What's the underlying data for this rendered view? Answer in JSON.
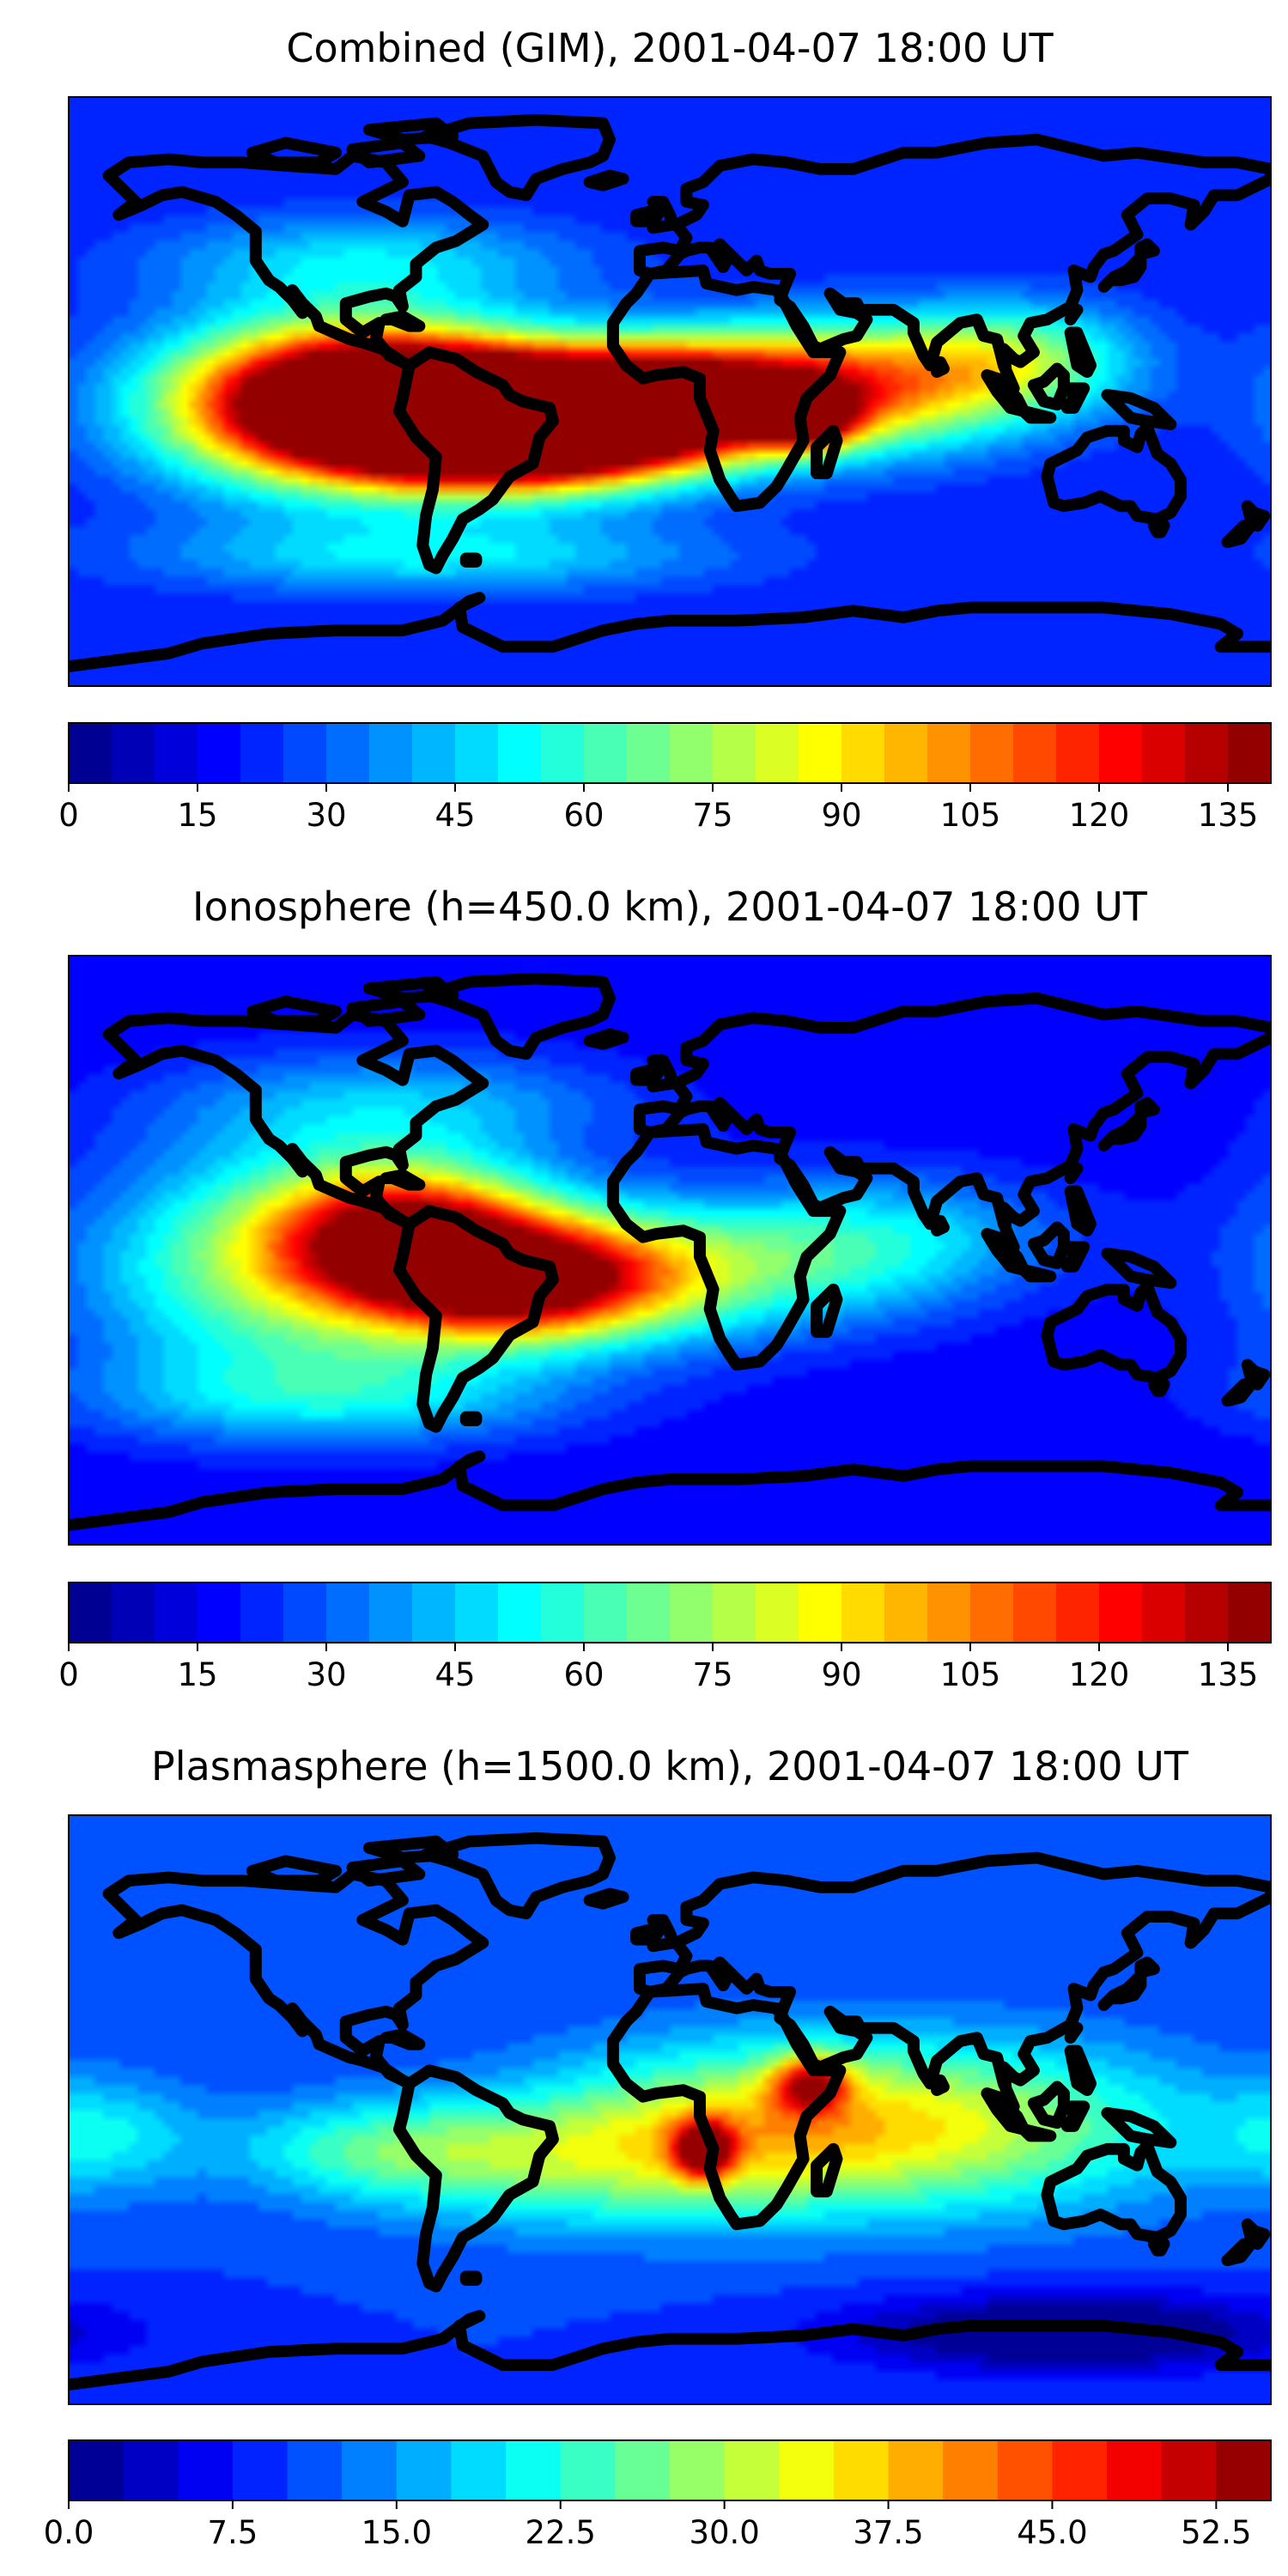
{
  "chart_data": [
    {
      "type": "heatmap",
      "title": "Combined (GIM), 2001-04-07 18:00 UT",
      "map_projection": "plate carree (global, lon -180..180, lat -90..90)",
      "colormap": "jet",
      "colorbar": {
        "min": 0,
        "max": 140,
        "levels": 28,
        "tick_values": [
          0,
          15,
          30,
          45,
          60,
          75,
          90,
          105,
          120,
          135
        ],
        "tick_labels": [
          "0",
          "15",
          "30",
          "45",
          "60",
          "75",
          "90",
          "105",
          "120",
          "135"
        ]
      },
      "background_value": 20,
      "features": [
        {
          "lon": -85,
          "lat": 0,
          "value": 120,
          "slon": 35,
          "slat": 14
        },
        {
          "lon": -60,
          "lat": -10,
          "value": 125,
          "slon": 35,
          "slat": 12
        },
        {
          "lon": -40,
          "lat": -12,
          "value": 112,
          "slon": 35,
          "slat": 12
        },
        {
          "lon": -15,
          "lat": -5,
          "value": 100,
          "slon": 30,
          "slat": 12
        },
        {
          "lon": -105,
          "lat": -5,
          "value": 92,
          "slon": 38,
          "slat": 18
        },
        {
          "lon": 40,
          "lat": -8,
          "value": 110,
          "slon": 10,
          "slat": 6
        },
        {
          "lon": 15,
          "lat": 0,
          "value": 95,
          "slon": 35,
          "slat": 12
        },
        {
          "lon": 60,
          "lat": 2,
          "value": 80,
          "slon": 35,
          "slat": 14
        },
        {
          "lon": 105,
          "lat": 10,
          "value": 62,
          "slon": 25,
          "slat": 12
        },
        {
          "lon": -90,
          "lat": 40,
          "value": 48,
          "slon": 45,
          "slat": 10
        },
        {
          "lon": -70,
          "lat": -50,
          "value": 50,
          "slon": 60,
          "slat": 8
        }
      ]
    },
    {
      "type": "heatmap",
      "title": "Ionosphere  (h=450.0 km), 2001-04-07 18:00 UT",
      "map_projection": "plate carree (global, lon -180..180, lat -90..90)",
      "colormap": "jet",
      "colorbar": {
        "min": 0,
        "max": 140,
        "levels": 28,
        "tick_values": [
          0,
          15,
          30,
          45,
          60,
          75,
          90,
          105,
          120,
          135
        ],
        "tick_labels": [
          "0",
          "15",
          "30",
          "45",
          "60",
          "75",
          "90",
          "105",
          "120",
          "135"
        ]
      },
      "background_value": 15,
      "features": [
        {
          "lon": -78,
          "lat": 5,
          "value": 110,
          "slon": 28,
          "slat": 14
        },
        {
          "lon": -50,
          "lat": -10,
          "value": 103,
          "slon": 28,
          "slat": 12
        },
        {
          "lon": -110,
          "lat": -5,
          "value": 75,
          "slon": 45,
          "slat": 25
        },
        {
          "lon": -20,
          "lat": -8,
          "value": 60,
          "slon": 30,
          "slat": 14
        },
        {
          "lon": 25,
          "lat": -5,
          "value": 50,
          "slon": 40,
          "slat": 15
        },
        {
          "lon": 70,
          "lat": 5,
          "value": 40,
          "slon": 35,
          "slat": 14
        },
        {
          "lon": -80,
          "lat": 45,
          "value": 40,
          "slon": 50,
          "slat": 12
        },
        {
          "lon": -100,
          "lat": -45,
          "value": 42,
          "slon": 55,
          "slat": 10
        }
      ]
    },
    {
      "type": "heatmap",
      "title": "Plasmasphere (h=1500.0 km), 2001-04-07 18:00 UT",
      "map_projection": "plate carree (global, lon -180..180, lat -90..90)",
      "colormap": "jet",
      "colorbar": {
        "min": 0,
        "max": 55,
        "levels": 22,
        "tick_values": [
          0,
          7.5,
          15,
          22.5,
          30,
          37.5,
          45,
          52.5
        ],
        "tick_labels": [
          "0.0",
          "7.5",
          "15.0",
          "22.5",
          "30.0",
          "37.5",
          "45.0",
          "52.5"
        ]
      },
      "background_value": 10,
      "features": [
        {
          "lon": 10,
          "lat": -12,
          "value": 42,
          "slon": 6,
          "slat": 6
        },
        {
          "lon": 42,
          "lat": 8,
          "value": 36,
          "slon": 8,
          "slat": 6
        },
        {
          "lon": 30,
          "lat": -5,
          "value": 31,
          "slon": 45,
          "slat": 18
        },
        {
          "lon": -35,
          "lat": -15,
          "value": 24,
          "slon": 45,
          "slat": 14
        },
        {
          "lon": 100,
          "lat": -5,
          "value": 25,
          "slon": 45,
          "slat": 18
        },
        {
          "lon": -170,
          "lat": -8,
          "value": 19,
          "slon": 20,
          "slat": 12
        },
        {
          "lon": -90,
          "lat": -12,
          "value": 20,
          "slon": 30,
          "slat": 10
        },
        {
          "lon": 120,
          "lat": -68,
          "value": -4,
          "slon": 45,
          "slat": 8
        }
      ]
    }
  ]
}
